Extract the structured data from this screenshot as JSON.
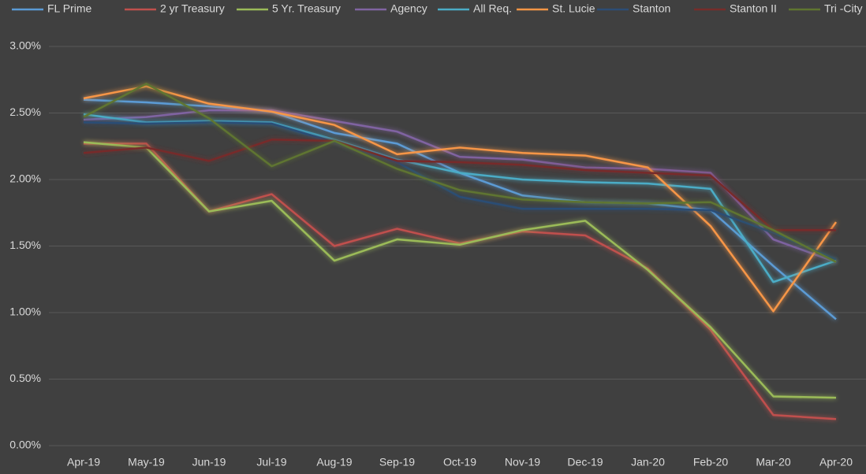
{
  "chart_data": {
    "type": "line",
    "categories": [
      "Apr-19",
      "May-19",
      "Jun-19",
      "Jul-19",
      "Aug-19",
      "Sep-19",
      "Oct-19",
      "Nov-19",
      "Dec-19",
      "Jan-20",
      "Feb-20",
      "Mar-20",
      "Apr-20"
    ],
    "series": [
      {
        "name": "FL Prime",
        "color": "#5b9bd5",
        "values": [
          2.6,
          2.58,
          2.55,
          2.51,
          2.35,
          2.27,
          2.05,
          1.88,
          1.83,
          1.82,
          1.77,
          1.35,
          0.95
        ]
      },
      {
        "name": "2 yr Treasury",
        "color": "#c0504d",
        "values": [
          2.27,
          2.27,
          1.76,
          1.89,
          1.5,
          1.63,
          1.52,
          1.61,
          1.58,
          1.33,
          0.87,
          0.23,
          0.2
        ]
      },
      {
        "name": "5 Yr. Treasury",
        "color": "#9bbb59",
        "values": [
          2.28,
          2.24,
          1.76,
          1.84,
          1.39,
          1.55,
          1.51,
          1.62,
          1.69,
          1.32,
          0.89,
          0.37,
          0.36
        ]
      },
      {
        "name": "Agency",
        "color": "#8064a2",
        "values": [
          2.45,
          2.47,
          2.52,
          2.52,
          2.44,
          2.36,
          2.17,
          2.15,
          2.09,
          2.08,
          2.05,
          1.55,
          1.38
        ]
      },
      {
        "name": "All Req.",
        "color": "#4bacc6",
        "values": [
          2.49,
          2.43,
          2.44,
          2.43,
          2.3,
          2.15,
          2.05,
          2.0,
          1.98,
          1.97,
          1.93,
          1.23,
          1.39
        ]
      },
      {
        "name": "St. Lucie",
        "color": "#f79646",
        "values": [
          2.61,
          2.7,
          2.57,
          2.51,
          2.41,
          2.19,
          2.24,
          2.2,
          2.18,
          2.09,
          1.65,
          1.01,
          1.68
        ]
      },
      {
        "name": "Stanton",
        "color": "#2c4d75",
        "values": [
          2.43,
          2.42,
          2.43,
          2.42,
          2.28,
          2.13,
          1.87,
          1.78,
          1.78,
          1.78,
          1.77,
          1.6,
          1.4
        ]
      },
      {
        "name": "Stanton II",
        "color": "#772c2a",
        "values": [
          2.2,
          2.24,
          2.14,
          2.3,
          2.29,
          2.14,
          2.13,
          2.11,
          2.07,
          2.05,
          2.03,
          1.62,
          1.62
        ]
      },
      {
        "name": "Tri -City",
        "color": "#5f7530",
        "values": [
          2.47,
          2.72,
          2.46,
          2.1,
          2.29,
          2.08,
          1.92,
          1.85,
          1.83,
          1.82,
          1.83,
          1.62,
          1.38
        ]
      }
    ],
    "ylim": [
      0,
      3
    ],
    "yticks": [
      {
        "value": 0,
        "label": "0.00%"
      },
      {
        "value": 0.5,
        "label": "0.50%"
      },
      {
        "value": 1,
        "label": "1.00%"
      },
      {
        "value": 1.5,
        "label": "1.50%"
      },
      {
        "value": 2,
        "label": "2.00%"
      },
      {
        "value": 2.5,
        "label": "2.50%"
      },
      {
        "value": 3,
        "label": "3.00%"
      }
    ],
    "grid": true,
    "legend": "top"
  }
}
